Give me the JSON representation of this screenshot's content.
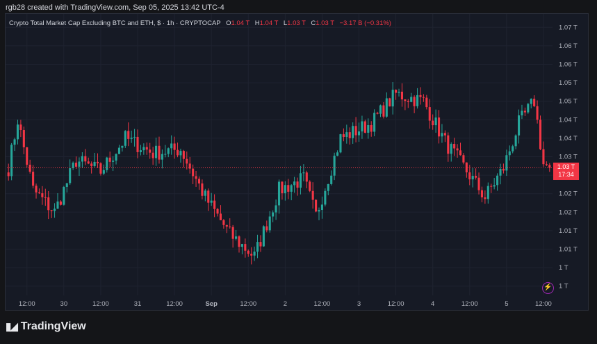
{
  "caption": "rgb28 created with TradingView.com, Sep 05, 2025 13:42 UTC-4",
  "legend": {
    "symbol": "Crypto Total Market Cap Excluding BTC and ETH, $ · 1h · CRYPTOCAP",
    "open_label": "O",
    "open": "1.04 T",
    "high_label": "H",
    "high": "1.04 T",
    "low_label": "L",
    "low": "1.03 T",
    "close_label": "C",
    "close": "1.03 T",
    "change": "−3.17 B (−0.31%)"
  },
  "last_price": {
    "value": "1.03 T",
    "countdown": "17:34"
  },
  "brand": "TradingView",
  "colors": {
    "up": "#26a69a",
    "down": "#f23645",
    "background": "#161a25",
    "accent": "#9c27b0"
  },
  "icons": {
    "alert": "lightning-bolt-icon",
    "logo": "tradingview-logo-icon"
  },
  "chart_data": {
    "type": "candlestick",
    "y_tick_labels": [
      "1.07 T",
      "1.06 T",
      "1.06 T",
      "1.05 T",
      "1.05 T",
      "1.04 T",
      "1.04 T",
      "1.03 T",
      "1.03 T",
      "1.02 T",
      "1.02 T",
      "1.01 T",
      "1.01 T",
      "1 T",
      "1 T"
    ],
    "y_tick_values": [
      1.07,
      1.065,
      1.06,
      1.055,
      1.05,
      1.045,
      1.04,
      1.035,
      1.03,
      1.025,
      1.02,
      1.015,
      1.01,
      1.005,
      1.0
    ],
    "ylim": [
      0.9975,
      1.0725
    ],
    "x_tick_labels": [
      "12:00",
      "30",
      "12:00",
      "31",
      "12:00",
      "Sep",
      "12:00",
      "2",
      "12:00",
      "3",
      "12:00",
      "4",
      "12:00",
      "5",
      "12:00"
    ],
    "x_tick_bars": [
      6,
      18,
      30,
      42,
      54,
      66,
      78,
      90,
      102,
      114,
      126,
      138,
      150,
      162,
      174
    ],
    "bar_count": 177,
    "last_value": 1.032,
    "segments": [
      [
        0,
        1.032
      ],
      [
        3,
        1.045
      ],
      [
        8,
        1.026
      ],
      [
        15,
        1.02
      ],
      [
        22,
        1.034
      ],
      [
        30,
        1.031
      ],
      [
        38,
        1.04
      ],
      [
        47,
        1.036
      ],
      [
        56,
        1.037
      ],
      [
        64,
        1.024
      ],
      [
        72,
        1.014
      ],
      [
        80,
        1.008
      ],
      [
        88,
        1.026
      ],
      [
        96,
        1.029
      ],
      [
        100,
        1.019
      ],
      [
        108,
        1.04
      ],
      [
        118,
        1.044
      ],
      [
        126,
        1.052
      ],
      [
        135,
        1.05
      ],
      [
        142,
        1.039
      ],
      [
        150,
        1.03
      ],
      [
        155,
        1.024
      ],
      [
        161,
        1.032
      ],
      [
        166,
        1.044
      ],
      [
        171,
        1.05
      ],
      [
        174,
        1.033
      ],
      [
        176,
        1.032
      ]
    ]
  }
}
